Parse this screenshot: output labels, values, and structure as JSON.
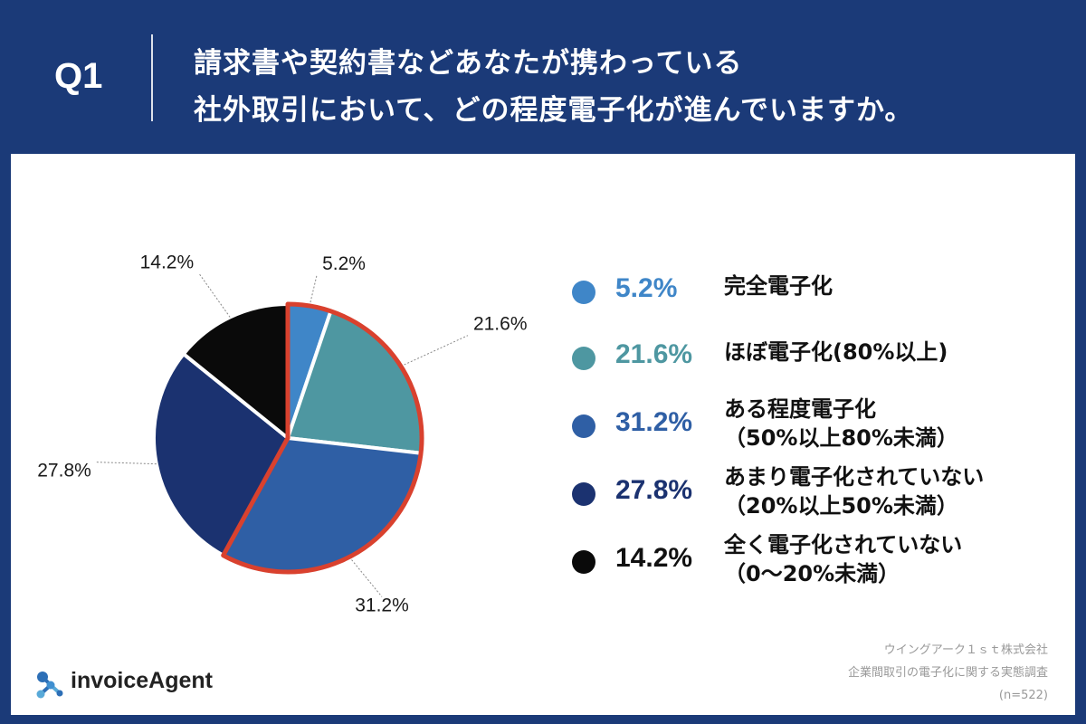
{
  "header": {
    "question_label": "Q1",
    "title_line1": "請求書や契約書などあなたが携わっている",
    "title_line2": "社外取引において、どの程度電子化が進んでいますか。"
  },
  "chart_data": {
    "type": "pie",
    "start_angle_deg": 0,
    "direction": "clockwise",
    "slices": [
      {
        "label": "完全電子化",
        "value": 5.2,
        "value_label": "5.2%",
        "color": "#3f86c8",
        "highlight": true
      },
      {
        "label": "ほぼ電子化(80%以上)",
        "value": 21.6,
        "value_label": "21.6%",
        "color": "#4e97a1",
        "highlight": true
      },
      {
        "label": "ある程度電子化（50%以上80%未満）",
        "value": 31.2,
        "value_label": "31.2%",
        "color": "#2f5fa5",
        "highlight": true
      },
      {
        "label": "あまり電子化されていない（20%以上50%未満）",
        "value": 27.8,
        "value_label": "27.8%",
        "color": "#1b3270",
        "highlight": false
      },
      {
        "label": "全く電子化されていない（0〜20%未満）",
        "value": 14.2,
        "value_label": "14.2%",
        "color": "#0a0a0a",
        "highlight": false
      }
    ],
    "highlight_outline_color": "#d9412e"
  },
  "legend": [
    {
      "pct": "5.2%",
      "line1": "完全電子化",
      "line2": "",
      "color": "#3f86c8",
      "pct_color": "#3f86c8"
    },
    {
      "pct": "21.6%",
      "line1": "ほぼ電子化(80%以上)",
      "line2": "",
      "color": "#4e97a1",
      "pct_color": "#4e97a1"
    },
    {
      "pct": "31.2%",
      "line1": "ある程度電子化",
      "line2": "（50%以上80%未満）",
      "color": "#2f5fa5",
      "pct_color": "#2f5fa5"
    },
    {
      "pct": "27.8%",
      "line1": "あまり電子化されていない",
      "line2": "（20%以上50%未満）",
      "color": "#1b3270",
      "pct_color": "#1b3270"
    },
    {
      "pct": "14.2%",
      "line1": "全く電子化されていない",
      "line2": "（0〜20%未満）",
      "color": "#0a0a0a",
      "pct_color": "#111111"
    }
  ],
  "brand": {
    "name": "invoiceAgent"
  },
  "source": {
    "company": "ウイングアーク１ｓｔ株式会社",
    "survey": "企業間取引の電子化に関する実態調査",
    "sample": "(n=522)"
  }
}
